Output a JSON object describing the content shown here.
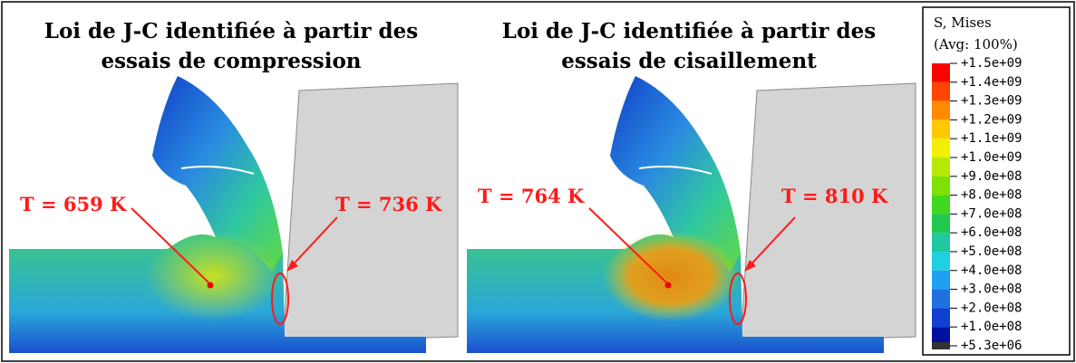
{
  "panels": [
    {
      "title": [
        "Loi de J-C identifiée à partir des",
        "essais de compression"
      ],
      "annotations": [
        "T = 659 K",
        "T = 736 K"
      ]
    },
    {
      "title": [
        "Loi de J-C identifiée à partir des",
        "essais de cisaillement"
      ],
      "annotations": [
        "T = 764 K",
        "T = 810 K"
      ]
    }
  ],
  "legend": {
    "title": [
      "S, Mises",
      "(Avg: 100%)"
    ],
    "labels": [
      "+1.5e+09",
      "+1.4e+09",
      "+1.3e+09",
      "+1.2e+09",
      "+1.1e+09",
      "+1.0e+09",
      "+9.0e+08",
      "+8.0e+08",
      "+7.0e+08",
      "+6.0e+08",
      "+5.0e+08",
      "+4.0e+08",
      "+3.0e+08",
      "+2.0e+08",
      "+1.0e+08",
      "+5.3e+06"
    ]
  }
}
